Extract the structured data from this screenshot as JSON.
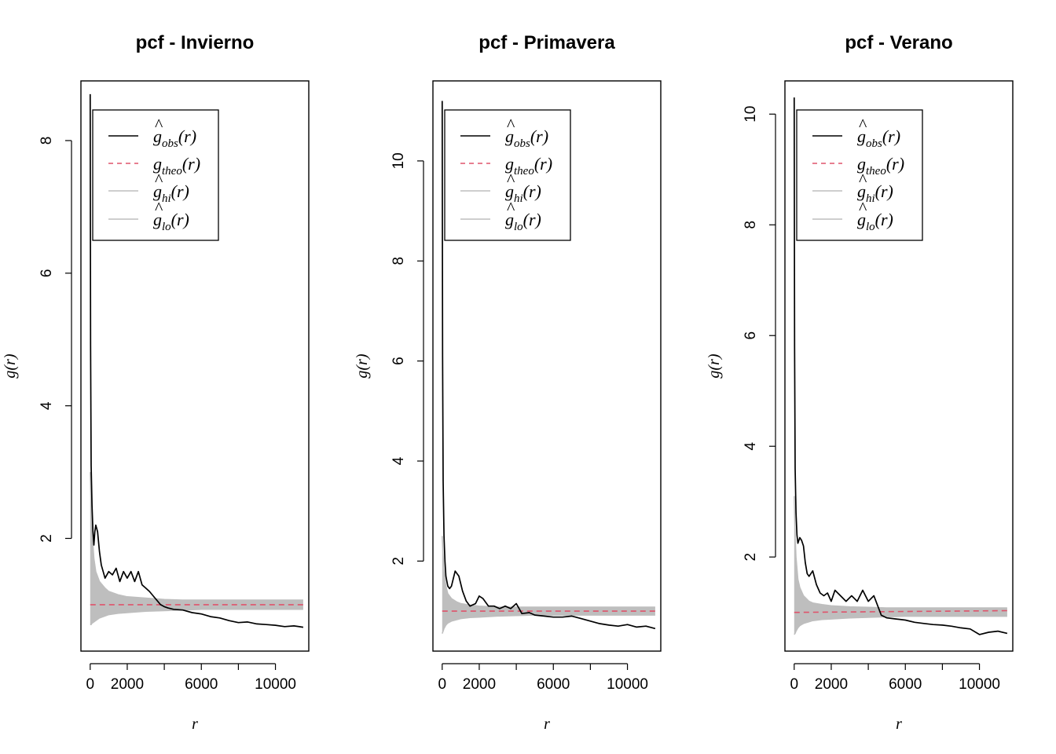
{
  "colors": {
    "obs": "#000000",
    "theo": "#DF536B",
    "envelope": "#BEBEBE"
  },
  "legend_entries": [
    {
      "key": "obs",
      "func": "g",
      "hat": true,
      "sub": "obs",
      "arg": "(r)",
      "style": "solid"
    },
    {
      "key": "theo",
      "func": "g",
      "hat": false,
      "sub": "theo",
      "arg": "(r)",
      "style": "dashed"
    },
    {
      "key": "hi",
      "func": "g",
      "hat": true,
      "sub": "hi",
      "arg": "(r)",
      "style": "solid"
    },
    {
      "key": "lo",
      "func": "g",
      "hat": true,
      "sub": "lo",
      "arg": "(r)",
      "style": "solid"
    }
  ],
  "chart_data": [
    {
      "type": "line",
      "title": "pcf - Invierno",
      "xlabel": "r",
      "ylabel": "g(r)",
      "xlim": [
        -500,
        11800
      ],
      "ylim": [
        0.3,
        8.9
      ],
      "xticks": [
        0,
        2000,
        6000,
        10000
      ],
      "xticks_unlabeled": [
        4000,
        8000
      ],
      "yticks": [
        2,
        4,
        6,
        8
      ],
      "legend_position": "top-left",
      "series": [
        {
          "name": "g_obs(r)",
          "style": "solid",
          "x": [
            0,
            20,
            50,
            100,
            150,
            200,
            250,
            300,
            400,
            500,
            600,
            700,
            800,
            1000,
            1200,
            1400,
            1600,
            1800,
            2000,
            2200,
            2400,
            2600,
            2800,
            3000,
            3200,
            3500,
            3800,
            4000,
            4200,
            4500,
            5000,
            5500,
            6000,
            6500,
            7000,
            7500,
            8000,
            8500,
            9000,
            9500,
            10000,
            10500,
            11000,
            11500
          ],
          "y": [
            8.7,
            4.9,
            3.1,
            2.5,
            2.1,
            1.9,
            2.1,
            2.2,
            2.1,
            1.8,
            1.6,
            1.5,
            1.4,
            1.5,
            1.45,
            1.55,
            1.35,
            1.5,
            1.4,
            1.5,
            1.35,
            1.5,
            1.3,
            1.25,
            1.2,
            1.1,
            1.0,
            0.97,
            0.95,
            0.93,
            0.92,
            0.88,
            0.86,
            0.82,
            0.8,
            0.76,
            0.73,
            0.74,
            0.71,
            0.7,
            0.69,
            0.67,
            0.68,
            0.66
          ]
        },
        {
          "name": "g_theo(r)",
          "style": "dashed",
          "x": [
            0,
            11500
          ],
          "y": [
            1.0,
            1.0
          ]
        },
        {
          "name": "g_hi(r)",
          "style": "solid",
          "x": [
            0,
            50,
            100,
            200,
            300,
            500,
            800,
            1000,
            1500,
            2000,
            3000,
            4000,
            5000,
            6000,
            8000,
            10000,
            11500
          ],
          "y": [
            3.0,
            2.5,
            2.1,
            1.7,
            1.5,
            1.35,
            1.25,
            1.2,
            1.15,
            1.12,
            1.1,
            1.08,
            1.07,
            1.07,
            1.07,
            1.07,
            1.07
          ]
        },
        {
          "name": "g_lo(r)",
          "style": "solid",
          "x": [
            0,
            50,
            100,
            200,
            300,
            500,
            800,
            1000,
            1500,
            2000,
            3000,
            4000,
            5000,
            6000,
            8000,
            10000,
            11500
          ],
          "y": [
            0.7,
            0.7,
            0.72,
            0.74,
            0.76,
            0.8,
            0.83,
            0.85,
            0.87,
            0.88,
            0.9,
            0.91,
            0.92,
            0.93,
            0.93,
            0.93,
            0.93
          ]
        }
      ]
    },
    {
      "type": "line",
      "title": "pcf - Primavera",
      "xlabel": "r",
      "ylabel": "g(r)",
      "xlim": [
        -500,
        11800
      ],
      "ylim": [
        0.2,
        11.6
      ],
      "xticks": [
        0,
        2000,
        6000,
        10000
      ],
      "xticks_unlabeled": [
        4000,
        8000
      ],
      "yticks": [
        2,
        4,
        6,
        8,
        10
      ],
      "legend_position": "top-left",
      "series": [
        {
          "name": "g_obs(r)",
          "style": "solid",
          "x": [
            0,
            20,
            50,
            100,
            150,
            200,
            300,
            400,
            500,
            700,
            900,
            1100,
            1300,
            1500,
            1800,
            2000,
            2200,
            2500,
            2800,
            3100,
            3400,
            3700,
            4000,
            4300,
            4700,
            5000,
            5500,
            6000,
            6500,
            7000,
            7500,
            8000,
            8500,
            9000,
            9500,
            10000,
            10500,
            11000,
            11500
          ],
          "y": [
            11.2,
            6.1,
            3.6,
            2.5,
            2.0,
            1.7,
            1.5,
            1.45,
            1.5,
            1.8,
            1.7,
            1.4,
            1.2,
            1.1,
            1.15,
            1.3,
            1.25,
            1.1,
            1.1,
            1.05,
            1.1,
            1.05,
            1.15,
            0.95,
            0.97,
            0.92,
            0.9,
            0.88,
            0.88,
            0.9,
            0.85,
            0.8,
            0.75,
            0.72,
            0.7,
            0.73,
            0.68,
            0.7,
            0.65
          ]
        },
        {
          "name": "g_theo(r)",
          "style": "dashed",
          "x": [
            0,
            11500
          ],
          "y": [
            1.0,
            1.0
          ]
        },
        {
          "name": "g_hi(r)",
          "style": "solid",
          "x": [
            0,
            50,
            100,
            200,
            300,
            500,
            800,
            1000,
            1500,
            2000,
            3000,
            4000,
            5000,
            6000,
            8000,
            10000,
            11500
          ],
          "y": [
            2.5,
            2.1,
            1.8,
            1.5,
            1.35,
            1.25,
            1.18,
            1.15,
            1.12,
            1.1,
            1.08,
            1.08,
            1.08,
            1.08,
            1.08,
            1.08,
            1.08
          ]
        },
        {
          "name": "g_lo(r)",
          "style": "solid",
          "x": [
            0,
            50,
            100,
            200,
            300,
            500,
            800,
            1000,
            1500,
            2000,
            3000,
            4000,
            5000,
            6000,
            8000,
            10000,
            11500
          ],
          "y": [
            0.55,
            0.6,
            0.65,
            0.72,
            0.76,
            0.8,
            0.83,
            0.85,
            0.87,
            0.88,
            0.9,
            0.91,
            0.92,
            0.92,
            0.92,
            0.92,
            0.92
          ]
        }
      ]
    },
    {
      "type": "line",
      "title": "pcf - Verano",
      "xlabel": "r",
      "ylabel": "g(r)",
      "xlim": [
        -500,
        11800
      ],
      "ylim": [
        0.3,
        10.6
      ],
      "xticks": [
        0,
        2000,
        6000,
        10000
      ],
      "xticks_unlabeled": [
        4000,
        8000
      ],
      "yticks": [
        2,
        4,
        6,
        8,
        10
      ],
      "legend_position": "top-left",
      "series": [
        {
          "name": "g_obs(r)",
          "style": "solid",
          "x": [
            0,
            20,
            50,
            100,
            150,
            200,
            300,
            400,
            500,
            600,
            700,
            800,
            1000,
            1200,
            1400,
            1600,
            1800,
            2000,
            2200,
            2500,
            2800,
            3100,
            3400,
            3700,
            4000,
            4300,
            4700,
            5000,
            5500,
            6000,
            6500,
            7000,
            7500,
            8000,
            8500,
            9000,
            9500,
            10000,
            10500,
            11000,
            11500
          ],
          "y": [
            10.3,
            5.8,
            3.6,
            2.8,
            2.4,
            2.25,
            2.35,
            2.3,
            2.2,
            1.9,
            1.7,
            1.65,
            1.75,
            1.5,
            1.35,
            1.3,
            1.35,
            1.2,
            1.4,
            1.3,
            1.2,
            1.3,
            1.2,
            1.4,
            1.2,
            1.3,
            0.95,
            0.9,
            0.88,
            0.86,
            0.82,
            0.8,
            0.78,
            0.77,
            0.75,
            0.72,
            0.7,
            0.6,
            0.64,
            0.66,
            0.62
          ]
        },
        {
          "name": "g_theo(r)",
          "style": "dashed",
          "x": [
            0,
            11500
          ],
          "y": [
            1.0,
            1.03
          ]
        },
        {
          "name": "g_hi(r)",
          "style": "solid",
          "x": [
            0,
            50,
            100,
            200,
            300,
            500,
            800,
            1000,
            1500,
            2000,
            3000,
            4000,
            5000,
            6000,
            8000,
            10000,
            11500
          ],
          "y": [
            3.1,
            2.4,
            2.0,
            1.6,
            1.45,
            1.3,
            1.2,
            1.17,
            1.14,
            1.12,
            1.1,
            1.09,
            1.08,
            1.08,
            1.08,
            1.08,
            1.08
          ]
        },
        {
          "name": "g_lo(r)",
          "style": "solid",
          "x": [
            0,
            50,
            100,
            200,
            300,
            500,
            800,
            1000,
            1500,
            2000,
            3000,
            4000,
            5000,
            6000,
            8000,
            10000,
            11500
          ],
          "y": [
            0.6,
            0.62,
            0.66,
            0.72,
            0.76,
            0.8,
            0.83,
            0.85,
            0.87,
            0.88,
            0.9,
            0.91,
            0.92,
            0.93,
            0.93,
            0.93,
            0.93
          ]
        }
      ]
    }
  ]
}
